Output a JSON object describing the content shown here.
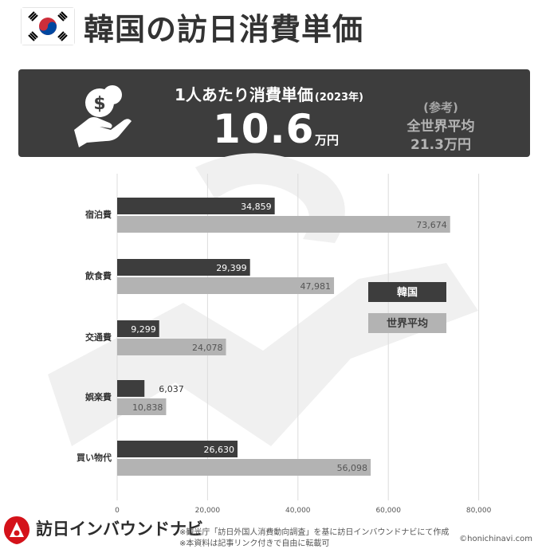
{
  "header": {
    "title": "韓国の訪日消費単価",
    "flag": "south-korea-flag"
  },
  "banner": {
    "label": "1人あたり消費単価",
    "year": "(2023年)",
    "value": "10.6",
    "unit": "万円",
    "ref_label": "(参考)",
    "ref_name": "全世界平均",
    "ref_value": "21.3万円",
    "icon": "hand-coin-icon"
  },
  "chart_data": {
    "type": "bar",
    "orientation": "horizontal",
    "categories": [
      "宿泊費",
      "飲食費",
      "交通費",
      "娯楽費",
      "買い物代"
    ],
    "series": [
      {
        "name": "韓国",
        "values": [
          34859,
          29399,
          9299,
          6037,
          26630
        ],
        "labels": [
          "34,859",
          "29,399",
          "9,299",
          "6,037",
          "26,630"
        ],
        "color": "#3d3d3d"
      },
      {
        "name": "世界平均",
        "values": [
          73674,
          47981,
          24078,
          10838,
          56098
        ],
        "labels": [
          "73,674",
          "47,981",
          "24,078",
          "10,838",
          "56,098"
        ],
        "color": "#b3b3b3"
      }
    ],
    "xlim": [
      0,
      80000
    ],
    "xticks": [
      0,
      20000,
      40000,
      60000,
      80000
    ],
    "xtick_labels": [
      "0",
      "20,000",
      "40,000",
      "60,000",
      "80,000"
    ],
    "grid": true,
    "legend_placement": "right"
  },
  "footer": {
    "brand": "訪日インバウンドナビ",
    "note1": "※観光庁「訪日外国人消費動向調査」を基に訪日インバウンドナビにて作成",
    "note2": "※本資料は記事リンク付きで自由に転載可",
    "copyright": "©honichinavi.com",
    "logo": "honichi-logo-icon"
  }
}
